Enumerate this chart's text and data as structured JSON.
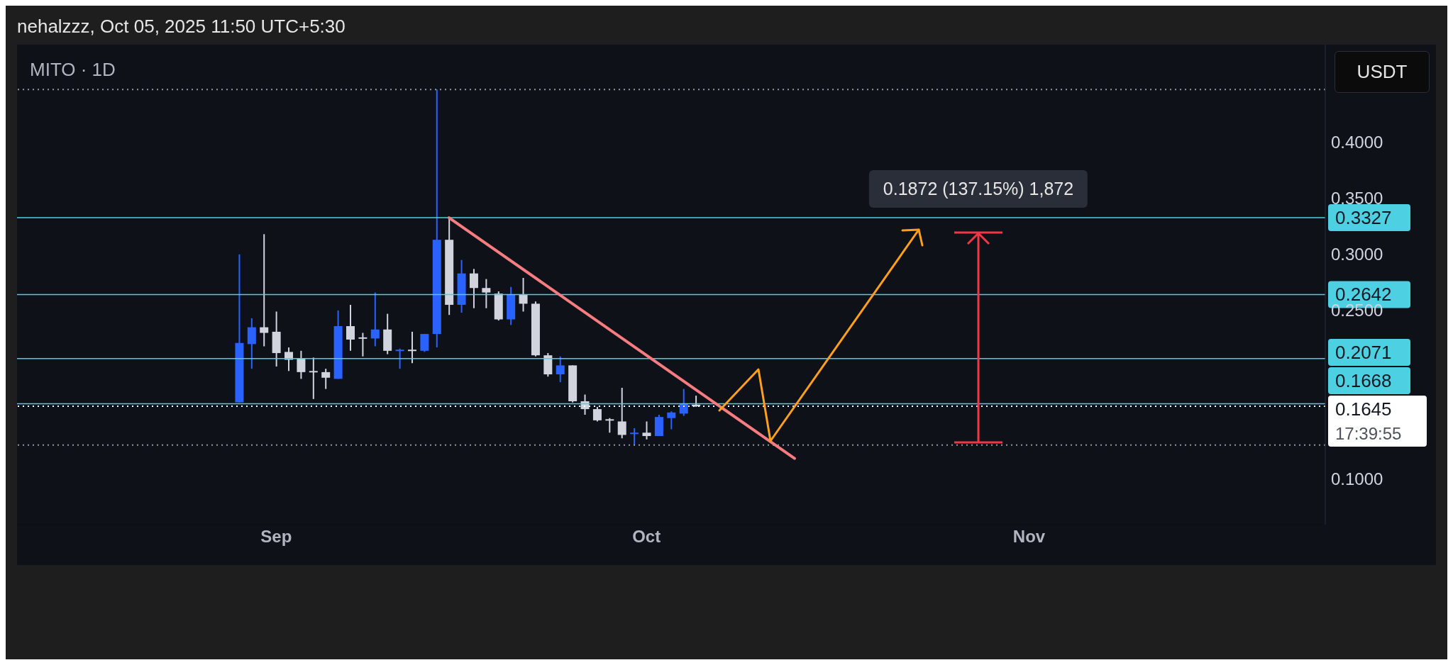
{
  "chart_data": {
    "type": "candlestick",
    "title": "MITO · 1D",
    "x": [
      "2025-08-29",
      "2025-08-30",
      "2025-08-31",
      "2025-09-01",
      "2025-09-02",
      "2025-09-03",
      "2025-09-04",
      "2025-09-05",
      "2025-09-06",
      "2025-09-07",
      "2025-09-08",
      "2025-09-09",
      "2025-09-10",
      "2025-09-11",
      "2025-09-12",
      "2025-09-13",
      "2025-09-14",
      "2025-09-15",
      "2025-09-16",
      "2025-09-17",
      "2025-09-18",
      "2025-09-19",
      "2025-09-20",
      "2025-09-21",
      "2025-09-22",
      "2025-09-23",
      "2025-09-24",
      "2025-09-25",
      "2025-09-26",
      "2025-09-27",
      "2025-09-28",
      "2025-09-29",
      "2025-09-30",
      "2025-10-01",
      "2025-10-02",
      "2025-10-03",
      "2025-10-04",
      "2025-10-05"
    ],
    "ohlc": [
      [
        0.168,
        0.3,
        0.168,
        0.221
      ],
      [
        0.22,
        0.243,
        0.198,
        0.235
      ],
      [
        0.235,
        0.318,
        0.218,
        0.23
      ],
      [
        0.231,
        0.249,
        0.2,
        0.212
      ],
      [
        0.213,
        0.217,
        0.196,
        0.206
      ],
      [
        0.207,
        0.214,
        0.189,
        0.195
      ],
      [
        0.196,
        0.208,
        0.171,
        0.195
      ],
      [
        0.195,
        0.198,
        0.18,
        0.19
      ],
      [
        0.189,
        0.25,
        0.189,
        0.236
      ],
      [
        0.236,
        0.255,
        0.214,
        0.224
      ],
      [
        0.226,
        0.23,
        0.209,
        0.225
      ],
      [
        0.225,
        0.266,
        0.218,
        0.233
      ],
      [
        0.233,
        0.247,
        0.211,
        0.214
      ],
      [
        0.214,
        0.216,
        0.198,
        0.215
      ],
      [
        0.215,
        0.231,
        0.203,
        0.214
      ],
      [
        0.214,
        0.229,
        0.213,
        0.229
      ],
      [
        0.229,
        0.447,
        0.217,
        0.313
      ],
      [
        0.313,
        0.3327,
        0.246,
        0.255
      ],
      [
        0.255,
        0.295,
        0.248,
        0.283
      ],
      [
        0.283,
        0.287,
        0.252,
        0.27
      ],
      [
        0.27,
        0.278,
        0.252,
        0.266
      ],
      [
        0.265,
        0.267,
        0.241,
        0.242
      ],
      [
        0.242,
        0.271,
        0.237,
        0.264
      ],
      [
        0.264,
        0.279,
        0.249,
        0.256
      ],
      [
        0.256,
        0.258,
        0.209,
        0.21
      ],
      [
        0.21,
        0.212,
        0.191,
        0.193
      ],
      [
        0.193,
        0.209,
        0.186,
        0.201
      ],
      [
        0.201,
        0.201,
        0.168,
        0.169
      ],
      [
        0.169,
        0.175,
        0.157,
        0.162
      ],
      [
        0.162,
        0.164,
        0.151,
        0.152
      ],
      [
        0.153,
        0.154,
        0.141,
        0.152
      ],
      [
        0.151,
        0.181,
        0.136,
        0.139
      ],
      [
        0.14,
        0.145,
        0.13,
        0.141
      ],
      [
        0.141,
        0.151,
        0.135,
        0.138
      ],
      [
        0.138,
        0.157,
        0.138,
        0.155
      ],
      [
        0.154,
        0.16,
        0.144,
        0.159
      ],
      [
        0.158,
        0.18,
        0.156,
        0.167
      ],
      [
        0.166,
        0.174,
        0.164,
        0.1645
      ]
    ],
    "colors": [
      "#2962ff",
      "#2962ff",
      "#d1d4dc",
      "#d1d4dc",
      "#d1d4dc",
      "#d1d4dc",
      "#d1d4dc",
      "#d1d4dc",
      "#2962ff",
      "#d1d4dc",
      "#d1d4dc",
      "#2962ff",
      "#d1d4dc",
      "#2962ff",
      "#d1d4dc",
      "#2962ff",
      "#2962ff",
      "#d1d4dc",
      "#2962ff",
      "#d1d4dc",
      "#d1d4dc",
      "#d1d4dc",
      "#2962ff",
      "#d1d4dc",
      "#d1d4dc",
      "#d1d4dc",
      "#2962ff",
      "#d1d4dc",
      "#d1d4dc",
      "#d1d4dc",
      "#d1d4dc",
      "#d1d4dc",
      "#2962ff",
      "#d1d4dc",
      "#2962ff",
      "#2962ff",
      "#2962ff",
      "#d1d4dc"
    ],
    "series": [
      {
        "type": "line",
        "color": "#f77c80",
        "x": [
          "2025-09-15",
          "2025-10-13"
        ],
        "values": [
          0.3327,
          0.118
        ]
      }
    ],
    "xlim": [
      "2025-08-11",
      "2025-11-25"
    ],
    "xticks": [
      {
        "value": "2025-09-01",
        "label": "Sep"
      },
      {
        "value": "2025-10-01",
        "label": "Oct"
      },
      {
        "value": "2025-11-01",
        "label": "Nov"
      }
    ],
    "ylim": [
      0.059,
      0.487
    ],
    "yticks": [
      {
        "value": 0.1,
        "label": "0.1000"
      },
      {
        "value": 0.25,
        "label": "0.2500"
      },
      {
        "value": 0.3,
        "label": "0.3000"
      },
      {
        "value": 0.35,
        "label": "0.3500"
      },
      {
        "value": 0.4,
        "label": "0.4000"
      }
    ],
    "ref_lines": [
      {
        "axis": "y",
        "value": 0.447,
        "label": null,
        "color": "#9598a1",
        "line_style": "dotted"
      },
      {
        "axis": "y",
        "value": 0.13,
        "label": null,
        "color": "#9598a1",
        "line_style": "dotted"
      },
      {
        "axis": "y",
        "value": 0.3327,
        "label": "0.3327",
        "color": "#4dd0e1"
      },
      {
        "axis": "y",
        "value": 0.2642,
        "label": "0.2642",
        "color": "#4dd0e1"
      },
      {
        "axis": "y",
        "value": 0.2071,
        "label": "0.2071",
        "color": "#4dd0e1"
      },
      {
        "axis": "y",
        "value": 0.1668,
        "label": "0.1668",
        "color": "#4dd0e1"
      },
      {
        "axis": "y",
        "value": 0.1645,
        "label": "0.1645",
        "color": "#ffffff",
        "line_style": "dotted"
      }
    ],
    "annotations": [
      "nehalzzz, Oct 05, 2025 11:50 UTC+5:30",
      "USDT",
      "17:39:55",
      "0.1872 (137.15%) 1,872"
    ],
    "grid": false
  }
}
